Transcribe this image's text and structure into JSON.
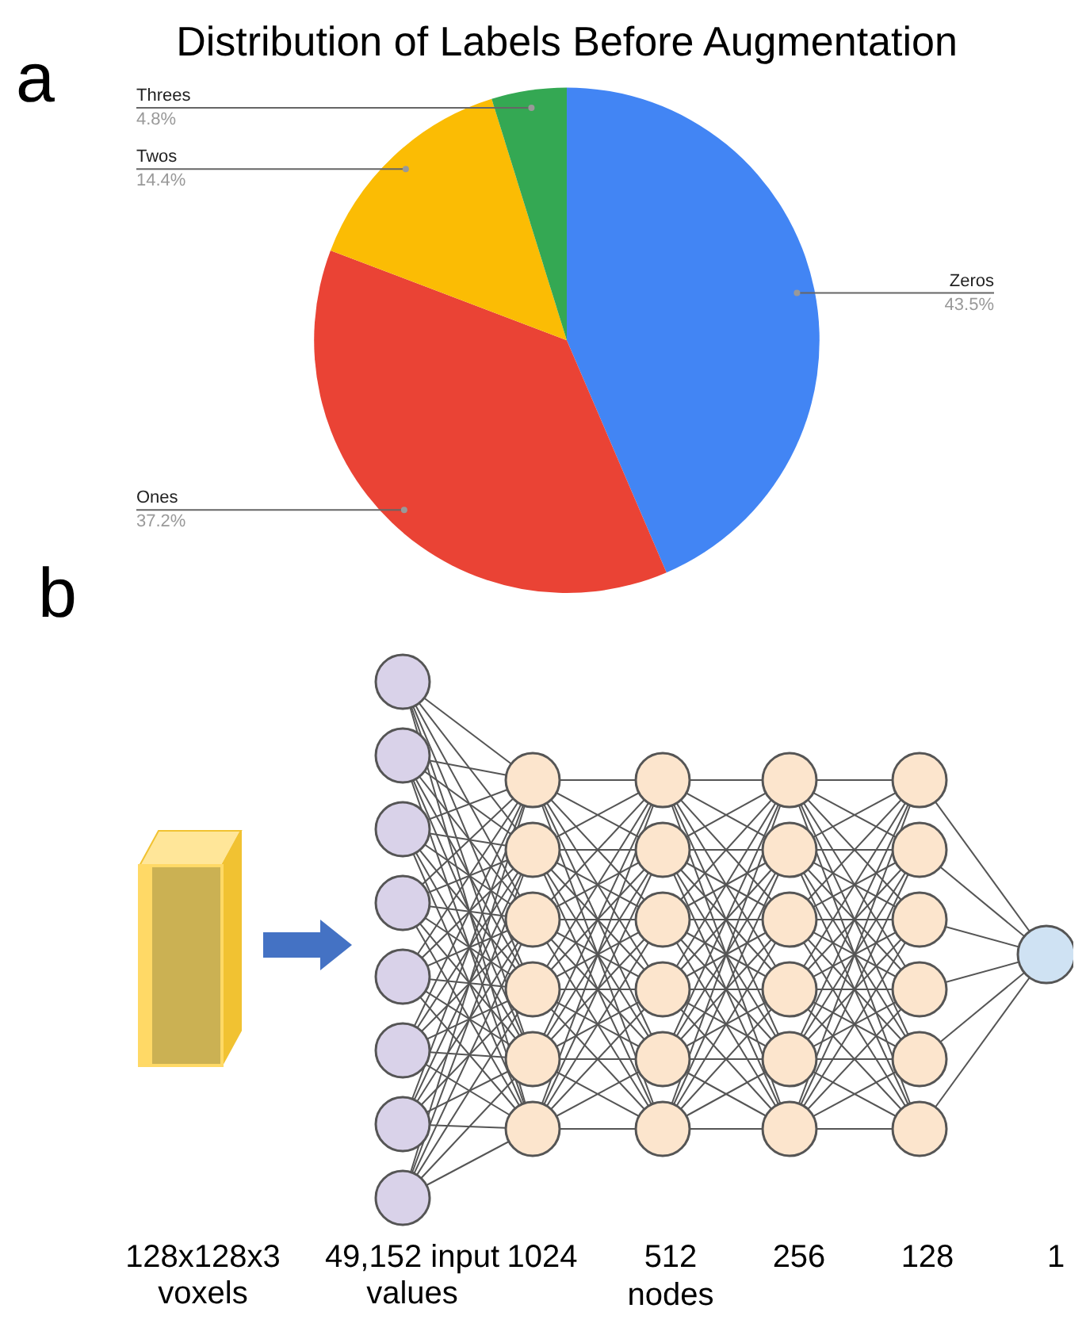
{
  "chart_data": [
    {
      "type": "pie",
      "title": "Distribution of Labels Before Augmentation",
      "categories": [
        "Zeros",
        "Ones",
        "Twos",
        "Threes"
      ],
      "values": [
        43.5,
        37.2,
        14.4,
        4.8
      ],
      "value_labels": [
        "43.5%",
        "37.2%",
        "14.4%",
        "4.8%"
      ],
      "colors": [
        "#4285f4",
        "#ea4335",
        "#fbbc04",
        "#34a853"
      ],
      "legend": false,
      "annotations": [
        "a"
      ]
    },
    {
      "type": "other",
      "annotations": [
        "b",
        "128x128x3 voxels",
        "49,152 input values",
        "1024",
        "512",
        "256",
        "128",
        "1",
        "nodes"
      ]
    }
  ]
}
